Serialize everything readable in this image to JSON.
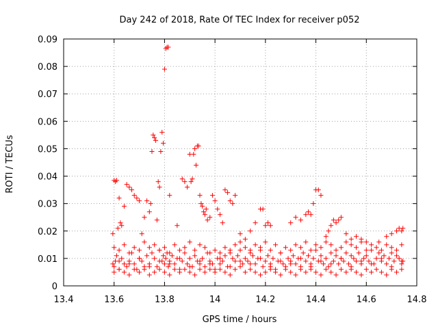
{
  "chart_data": {
    "type": "scatter",
    "title": "Day 242 of 2018, Rate Of TEC Index for receiver p052",
    "xlabel": "GPS time / hours",
    "ylabel": "ROTI / TECUs",
    "xlim": [
      13.4,
      14.8
    ],
    "ylim": [
      0,
      0.09
    ],
    "xticks": [
      13.4,
      13.6,
      13.8,
      14.0,
      14.2,
      14.4,
      14.6,
      14.8
    ],
    "xtick_labels": [
      "13.4",
      "13.6",
      "13.8",
      "14",
      "14.2",
      "14.4",
      "14.6",
      "14.8"
    ],
    "yticks": [
      0,
      0.01,
      0.02,
      0.03,
      0.04,
      0.05,
      0.06,
      0.07,
      0.08,
      0.09
    ],
    "ytick_labels": [
      "0",
      "0.01",
      "0.02",
      "0.03",
      "0.04",
      "0.05",
      "0.06",
      "0.07",
      "0.08",
      "0.09"
    ],
    "grid": true,
    "marker": "+",
    "color": "#ff0000",
    "series": [
      {
        "name": "ROTI",
        "x": [
          13.595,
          13.6,
          13.605,
          13.61,
          13.62,
          13.63,
          13.64,
          13.65,
          13.66,
          13.67,
          13.68,
          13.69,
          13.7,
          13.71,
          13.72,
          13.73,
          13.74,
          13.75,
          13.76,
          13.77,
          13.78,
          13.79,
          13.795,
          13.8,
          13.805,
          13.81,
          13.815,
          13.82,
          13.83,
          13.84,
          13.85,
          13.86,
          13.87,
          13.88,
          13.89,
          13.9,
          13.91,
          13.92,
          13.93,
          13.94,
          13.95,
          13.96,
          13.97,
          13.98,
          13.99,
          14.0,
          14.01,
          14.02,
          14.03,
          14.04,
          14.05,
          14.06,
          14.07,
          14.08,
          14.09,
          14.1,
          14.11,
          14.12,
          14.13,
          14.14,
          14.15,
          14.16,
          14.17,
          14.18,
          14.19,
          14.2,
          14.21,
          14.22,
          14.23,
          14.24,
          14.25,
          14.26,
          14.27,
          14.28,
          14.29,
          14.3,
          14.31,
          14.32,
          14.33,
          14.34,
          14.35,
          14.36,
          14.37,
          14.38,
          14.39,
          14.4,
          14.41,
          14.42,
          14.43,
          14.44,
          14.45,
          14.46,
          14.47,
          14.48,
          14.49,
          14.5,
          14.51,
          14.52,
          14.53,
          14.54,
          14.55,
          14.56,
          14.57,
          14.58,
          14.59,
          14.6,
          14.61,
          14.62,
          14.63,
          14.64,
          14.65,
          14.66,
          14.67,
          14.68,
          14.69,
          14.7,
          14.71,
          14.72,
          14.73,
          14.74,
          14.745,
          13.6,
          13.62,
          13.64,
          13.66,
          13.68,
          13.7,
          13.72,
          13.74,
          13.76,
          13.78,
          13.8,
          13.82,
          13.84,
          13.86,
          13.88,
          13.9,
          13.92,
          13.94,
          13.96,
          13.98,
          14.0,
          14.02,
          14.04,
          14.06,
          14.08,
          14.1,
          14.12,
          14.14,
          14.16,
          14.18,
          14.2,
          14.22,
          14.24,
          14.26,
          14.28,
          14.3,
          14.32,
          14.34,
          14.36,
          14.38,
          14.4,
          14.42,
          14.44,
          14.46,
          14.48,
          14.5,
          14.52,
          14.54,
          14.56,
          14.58,
          14.6,
          14.62,
          14.64,
          14.66,
          14.68,
          14.7,
          14.72,
          14.74,
          13.6,
          13.62,
          13.64,
          13.66,
          13.68,
          13.7,
          13.72,
          13.74,
          13.76,
          13.78,
          13.8,
          13.82,
          13.84,
          13.86,
          13.88,
          13.9,
          13.92,
          13.94,
          13.96,
          13.98,
          14.0,
          14.02,
          14.04,
          14.06,
          14.08,
          14.1,
          14.12,
          14.14,
          14.16,
          14.18,
          14.2,
          14.22,
          14.24,
          14.26,
          14.28,
          14.3,
          14.32,
          14.34,
          14.36,
          14.38,
          14.4,
          14.42,
          14.44,
          14.46,
          14.48,
          14.5,
          14.52,
          14.54,
          14.56,
          14.58,
          14.6,
          14.62,
          14.64,
          14.66,
          14.68,
          14.7,
          14.72,
          14.74,
          13.595,
          13.6,
          13.605,
          13.61,
          13.615,
          13.62,
          13.625,
          13.63,
          13.64,
          13.65,
          13.66,
          13.67,
          13.68,
          13.69,
          13.7,
          13.71,
          13.72,
          13.73,
          13.74,
          13.745,
          13.75,
          13.755,
          13.76,
          13.765,
          13.77,
          13.775,
          13.78,
          13.785,
          13.79,
          13.795,
          13.8,
          13.805,
          13.81,
          13.815,
          13.82,
          13.85,
          13.87,
          13.88,
          13.89,
          13.9,
          13.905,
          13.91,
          13.915,
          13.92,
          13.925,
          13.93,
          13.935,
          13.94,
          13.945,
          13.95,
          13.955,
          13.96,
          13.965,
          13.97,
          13.98,
          13.99,
          14.0,
          14.01,
          14.02,
          14.03,
          14.04,
          14.05,
          14.06,
          14.07,
          14.08,
          14.1,
          14.12,
          14.14,
          14.16,
          14.18,
          14.19,
          14.2,
          14.21,
          14.22,
          14.3,
          14.32,
          14.34,
          14.36,
          14.37,
          14.38,
          14.39,
          14.4,
          14.41,
          14.42,
          14.44,
          14.45,
          14.46,
          14.47,
          14.48,
          14.49,
          14.5,
          14.52,
          14.54,
          14.56,
          14.58,
          14.6,
          14.65,
          14.68,
          14.7,
          14.72,
          14.73,
          14.74,
          14.745,
          13.62,
          13.66,
          13.7,
          13.74,
          13.78,
          13.82,
          13.86,
          13.9,
          13.94,
          13.98,
          14.02,
          14.06,
          14.1,
          14.14,
          14.18,
          14.22,
          14.26,
          14.3,
          14.34,
          14.38,
          14.42,
          14.46,
          14.5,
          14.54,
          14.58,
          14.62,
          14.66,
          14.7,
          14.74
        ],
        "y": [
          0.008,
          0.007,
          0.009,
          0.011,
          0.006,
          0.01,
          0.008,
          0.007,
          0.009,
          0.012,
          0.008,
          0.006,
          0.01,
          0.009,
          0.007,
          0.011,
          0.008,
          0.012,
          0.01,
          0.007,
          0.013,
          0.009,
          0.011,
          0.008,
          0.01,
          0.012,
          0.007,
          0.009,
          0.011,
          0.008,
          0.01,
          0.006,
          0.009,
          0.012,
          0.008,
          0.01,
          0.007,
          0.011,
          0.009,
          0.008,
          0.01,
          0.007,
          0.012,
          0.009,
          0.008,
          0.006,
          0.01,
          0.008,
          0.009,
          0.011,
          0.007,
          0.012,
          0.01,
          0.009,
          0.011,
          0.013,
          0.008,
          0.01,
          0.009,
          0.012,
          0.011,
          0.008,
          0.01,
          0.013,
          0.007,
          0.009,
          0.011,
          0.008,
          0.01,
          0.006,
          0.009,
          0.012,
          0.008,
          0.007,
          0.01,
          0.009,
          0.011,
          0.008,
          0.01,
          0.007,
          0.012,
          0.009,
          0.011,
          0.008,
          0.01,
          0.013,
          0.009,
          0.011,
          0.008,
          0.01,
          0.007,
          0.012,
          0.009,
          0.011,
          0.008,
          0.01,
          0.009,
          0.012,
          0.008,
          0.011,
          0.01,
          0.009,
          0.012,
          0.008,
          0.01,
          0.011,
          0.009,
          0.013,
          0.008,
          0.01,
          0.012,
          0.009,
          0.011,
          0.008,
          0.01,
          0.012,
          0.009,
          0.011,
          0.01,
          0.008,
          0.009,
          0.005,
          0.006,
          0.005,
          0.004,
          0.006,
          0.005,
          0.006,
          0.004,
          0.005,
          0.006,
          0.005,
          0.004,
          0.006,
          0.005,
          0.006,
          0.005,
          0.004,
          0.006,
          0.005,
          0.006,
          0.005,
          0.006,
          0.005,
          0.004,
          0.006,
          0.007,
          0.005,
          0.006,
          0.005,
          0.004,
          0.005,
          0.006,
          0.005,
          0.004,
          0.006,
          0.005,
          0.004,
          0.006,
          0.005,
          0.006,
          0.005,
          0.004,
          0.006,
          0.005,
          0.004,
          0.006,
          0.005,
          0.006,
          0.005,
          0.004,
          0.006,
          0.005,
          0.006,
          0.005,
          0.004,
          0.006,
          0.005,
          0.006,
          0.014,
          0.013,
          0.015,
          0.012,
          0.014,
          0.013,
          0.016,
          0.014,
          0.015,
          0.013,
          0.014,
          0.012,
          0.015,
          0.013,
          0.014,
          0.016,
          0.013,
          0.015,
          0.014,
          0.012,
          0.013,
          0.012,
          0.014,
          0.013,
          0.015,
          0.016,
          0.014,
          0.013,
          0.015,
          0.014,
          0.016,
          0.013,
          0.015,
          0.012,
          0.014,
          0.013,
          0.015,
          0.014,
          0.016,
          0.013,
          0.015,
          0.014,
          0.016,
          0.015,
          0.013,
          0.014,
          0.016,
          0.015,
          0.014,
          0.016,
          0.013,
          0.015,
          0.014,
          0.013,
          0.015,
          0.014,
          0.013,
          0.015,
          0.019,
          0.0385,
          0.038,
          0.0385,
          0.021,
          0.032,
          0.023,
          0.022,
          0.029,
          0.037,
          0.036,
          0.035,
          0.033,
          0.032,
          0.031,
          0.019,
          0.025,
          0.031,
          0.027,
          0.03,
          0.049,
          0.055,
          0.054,
          0.053,
          0.024,
          0.038,
          0.036,
          0.049,
          0.056,
          0.052,
          0.079,
          0.0865,
          0.087,
          0.087,
          0.033,
          0.022,
          0.039,
          0.038,
          0.036,
          0.048,
          0.038,
          0.039,
          0.048,
          0.05,
          0.044,
          0.051,
          0.051,
          0.033,
          0.03,
          0.029,
          0.027,
          0.026,
          0.028,
          0.024,
          0.025,
          0.033,
          0.031,
          0.028,
          0.026,
          0.023,
          0.035,
          0.034,
          0.031,
          0.03,
          0.033,
          0.019,
          0.017,
          0.02,
          0.023,
          0.028,
          0.028,
          0.022,
          0.023,
          0.022,
          0.023,
          0.025,
          0.024,
          0.026,
          0.027,
          0.026,
          0.03,
          0.035,
          0.035,
          0.033,
          0.018,
          0.02,
          0.022,
          0.024,
          0.023,
          0.024,
          0.025,
          0.019,
          0.017,
          0.018,
          0.017,
          0.016,
          0.016,
          0.018,
          0.019,
          0.02,
          0.021,
          0.02,
          0.021,
          0.009,
          0.008,
          0.01,
          0.007,
          0.009,
          0.008,
          0.01,
          0.007,
          0.009,
          0.008,
          0.01,
          0.007,
          0.009,
          0.008,
          0.01,
          0.007,
          0.009,
          0.008,
          0.01,
          0.007,
          0.009,
          0.008,
          0.01,
          0.007,
          0.009,
          0.008,
          0.01,
          0.007,
          0.009
        ]
      }
    ]
  }
}
